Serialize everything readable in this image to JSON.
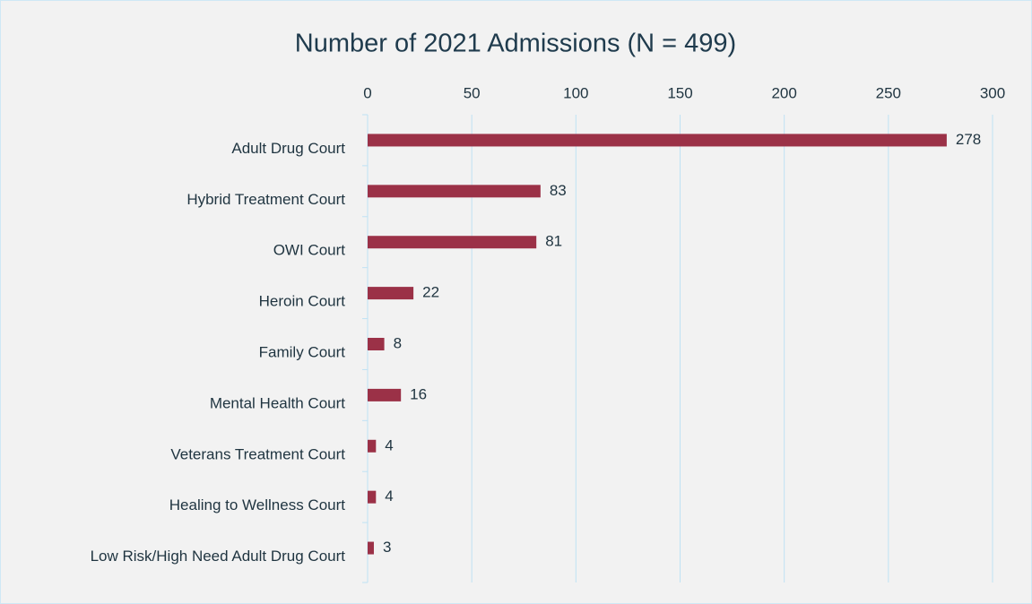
{
  "chart_data": {
    "type": "bar",
    "orientation": "horizontal",
    "title": "Number of 2021 Admissions (N = 499)",
    "categories": [
      "Adult Drug Court",
      "Hybrid Treatment Court",
      "OWI Court",
      "Heroin Court",
      "Family Court",
      "Mental Health Court",
      "Veterans Treatment Court",
      "Healing to Wellness Court",
      "Low Risk/High Need Adult Drug Court"
    ],
    "values": [
      278,
      83,
      81,
      22,
      8,
      16,
      4,
      4,
      3
    ],
    "color": "#9b3147",
    "xlim": [
      0,
      300
    ],
    "xticks": [
      0,
      50,
      100,
      150,
      200,
      250,
      300
    ],
    "grid": true
  }
}
